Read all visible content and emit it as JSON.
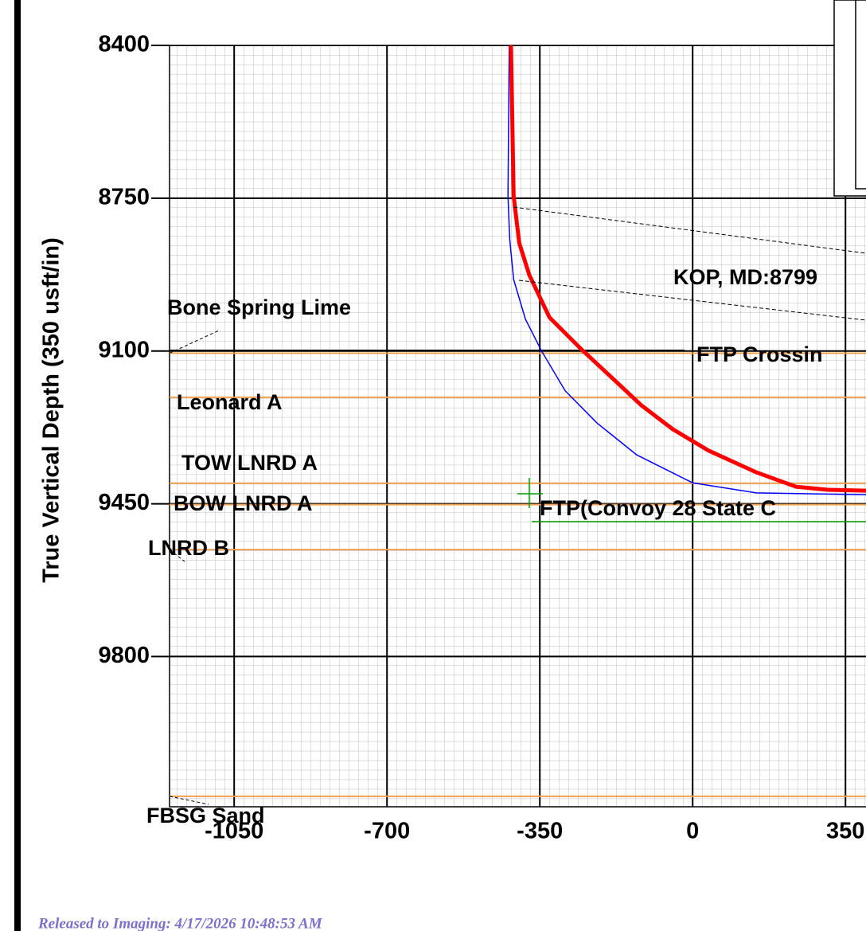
{
  "chart_data": {
    "type": "line",
    "y_label": "True Vertical Depth (350 usft/in)",
    "xlim": [
      -1198,
      397
    ],
    "ylim": [
      8400,
      10144
    ],
    "xticks": [
      -1050,
      -700,
      -350,
      0,
      350
    ],
    "yticks": [
      8400,
      8750,
      9100,
      9450,
      9800
    ],
    "grid": true,
    "series": [
      {
        "color": "#ff0000",
        "x": [
          -416,
          -410,
          -397,
          -374,
          -328,
          -255,
          -182,
          -118,
          -46,
          36,
          146,
          237,
          310,
          397
        ],
        "values": [
          8400,
          8745,
          8853,
          8926,
          9023,
          9096,
          9164,
          9224,
          9279,
          9328,
          9378,
          9411,
          9418,
          9420
        ]
      },
      {
        "color": "#0000ff",
        "x": [
          -420,
          -423,
          -419,
          -410,
          -383,
          -346,
          -292,
          -219,
          -128,
          0,
          146,
          397
        ],
        "values": [
          8400,
          8745,
          8844,
          8936,
          9027,
          9100,
          9191,
          9265,
          9338,
          9402,
          9425,
          9429
        ]
      }
    ],
    "formations": [
      {
        "label": "Bone Spring Lime",
        "tvd": 9105
      },
      {
        "label": "Leonard A",
        "tvd": 9206
      },
      {
        "label": "TOW LNRD A",
        "tvd": 9403
      },
      {
        "label": "BOW LNRD A",
        "tvd": 9452
      },
      {
        "label": "LNRD B",
        "tvd": 9555
      },
      {
        "label": "FBSG Sand",
        "tvd": 10120
      }
    ],
    "annotations": [
      "KOP, MD:8799",
      "FTP Crossin",
      "FTP(Convoy 28 State C"
    ],
    "footer": "Released to Imaging: 4/17/2026 10:48:53 AM"
  }
}
